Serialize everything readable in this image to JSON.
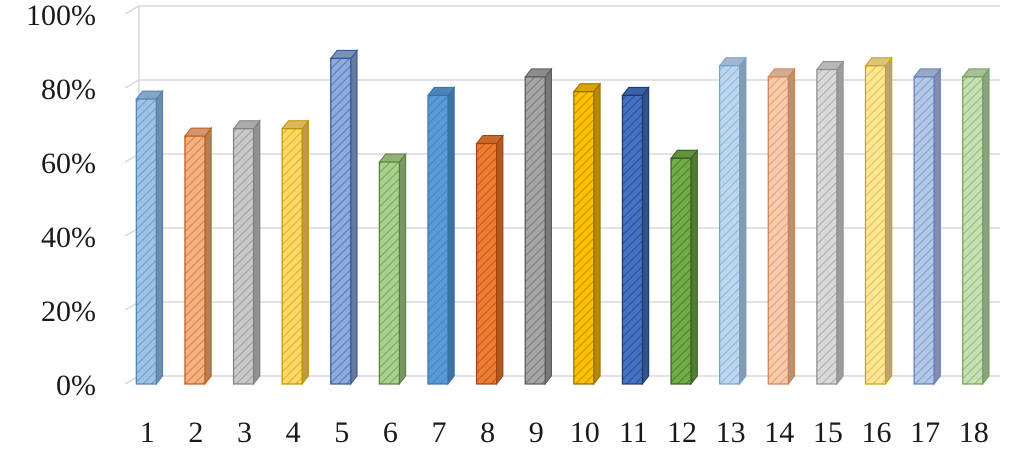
{
  "chart_data": {
    "type": "bar",
    "categories": [
      "1",
      "2",
      "3",
      "4",
      "5",
      "6",
      "7",
      "8",
      "9",
      "10",
      "11",
      "12",
      "13",
      "14",
      "15",
      "16",
      "17",
      "18"
    ],
    "values": [
      0.77,
      0.67,
      0.69,
      0.69,
      0.88,
      0.6,
      0.78,
      0.65,
      0.83,
      0.79,
      0.78,
      0.61,
      0.86,
      0.83,
      0.85,
      0.86,
      0.83,
      0.83
    ],
    "ylim": [
      0,
      1
    ],
    "yticks": [
      0,
      0.2,
      0.4,
      0.6,
      0.8,
      1.0
    ],
    "ytick_labels": [
      "0%",
      "20%",
      "40%",
      "60%",
      "80%",
      "100%"
    ],
    "title": "",
    "xlabel": "",
    "ylabel": "",
    "grid": true,
    "legend": "none",
    "bar_colors": [
      "#9dc3e6",
      "#f4b183",
      "#c9c9c9",
      "#ffd966",
      "#8faadc",
      "#a9d18e",
      "#5b9bd5",
      "#ed7d31",
      "#a5a5a5",
      "#ffc000",
      "#4472c4",
      "#70ad47",
      "#bdd7ee",
      "#f8cbad",
      "#d9d9d9",
      "#ffe699",
      "#b4c7e7",
      "#c5e0b4"
    ],
    "bar_edge_colors": [
      "#4f7fb5",
      "#c55a11",
      "#7f7f7f",
      "#bf9000",
      "#2f5597",
      "#548235",
      "#2e75b6",
      "#a0430c",
      "#595959",
      "#8f6b00",
      "#1f3864",
      "#385723",
      "#6f9fcf",
      "#d08050",
      "#8c8c8c",
      "#c9a400",
      "#5b7fb8",
      "#6fa050"
    ]
  }
}
